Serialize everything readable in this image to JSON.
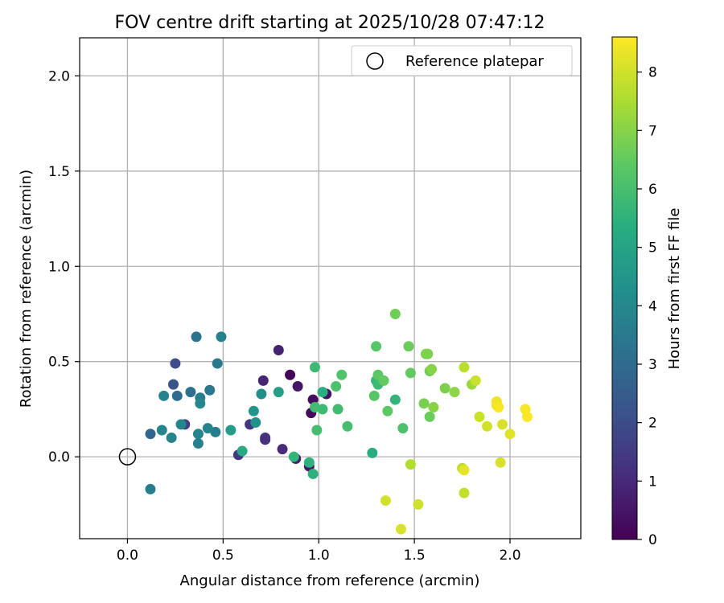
{
  "chart_data": {
    "type": "scatter",
    "title": "FOV centre drift starting at 2025/10/28 07:47:12",
    "xlabel": "Angular distance from reference (arcmin)",
    "ylabel": "Rotation from reference (arcmin)",
    "xlim": [
      -0.25,
      2.37
    ],
    "ylim": [
      -0.43,
      2.2
    ],
    "xticks": [
      0.0,
      0.5,
      1.0,
      1.5,
      2.0
    ],
    "xtick_labels": [
      "0.0",
      "0.5",
      "1.0",
      "1.5",
      "2.0"
    ],
    "yticks": [
      0.0,
      0.5,
      1.0,
      1.5,
      2.0
    ],
    "ytick_labels": [
      "0.0",
      "0.5",
      "1.0",
      "1.5",
      "2.0"
    ],
    "grid": true,
    "legend": {
      "position": "top-right",
      "entries": [
        "Reference platepar"
      ]
    },
    "reference_point": {
      "x": 0.0,
      "y": 0.0,
      "label": "Reference platepar"
    },
    "colorbar": {
      "label": "Hours from first FF file",
      "range": [
        0,
        8.6
      ],
      "ticks": [
        0,
        1,
        2,
        3,
        4,
        5,
        6,
        7,
        8
      ],
      "tick_labels": [
        "0",
        "1",
        "2",
        "3",
        "4",
        "5",
        "6",
        "7",
        "8"
      ],
      "colormap": "viridis"
    },
    "points": [
      {
        "x": 0.85,
        "y": 0.43,
        "c": 0.1
      },
      {
        "x": 0.96,
        "y": 0.23,
        "c": 0.2
      },
      {
        "x": 0.97,
        "y": 0.3,
        "c": 0.3
      },
      {
        "x": 1.04,
        "y": 0.33,
        "c": 0.4
      },
      {
        "x": 0.89,
        "y": 0.37,
        "c": 0.5
      },
      {
        "x": 0.95,
        "y": -0.05,
        "c": 0.6
      },
      {
        "x": 0.88,
        "y": -0.01,
        "c": 0.7
      },
      {
        "x": 0.79,
        "y": 0.56,
        "c": 0.8
      },
      {
        "x": 0.71,
        "y": 0.4,
        "c": 0.9
      },
      {
        "x": 0.81,
        "y": 0.04,
        "c": 1.0
      },
      {
        "x": 0.72,
        "y": 0.09,
        "c": 1.1
      },
      {
        "x": 0.72,
        "y": 0.1,
        "c": 1.2
      },
      {
        "x": 0.64,
        "y": 0.17,
        "c": 1.3
      },
      {
        "x": 0.58,
        "y": 0.01,
        "c": 1.4
      },
      {
        "x": 0.3,
        "y": 0.17,
        "c": 1.6
      },
      {
        "x": 0.25,
        "y": 0.49,
        "c": 2.0
      },
      {
        "x": 0.24,
        "y": 0.38,
        "c": 2.2
      },
      {
        "x": 0.12,
        "y": 0.12,
        "c": 2.8
      },
      {
        "x": 0.26,
        "y": 0.32,
        "c": 3.0
      },
      {
        "x": 0.33,
        "y": 0.34,
        "c": 3.1
      },
      {
        "x": 0.36,
        "y": 0.63,
        "c": 3.3
      },
      {
        "x": 0.43,
        "y": 0.35,
        "c": 3.4
      },
      {
        "x": 0.47,
        "y": 0.49,
        "c": 3.5
      },
      {
        "x": 0.38,
        "y": 0.31,
        "c": 3.5
      },
      {
        "x": 0.46,
        "y": 0.13,
        "c": 3.6
      },
      {
        "x": 0.12,
        "y": -0.17,
        "c": 3.6
      },
      {
        "x": 0.49,
        "y": 0.63,
        "c": 3.7
      },
      {
        "x": 0.37,
        "y": 0.07,
        "c": 3.7
      },
      {
        "x": 0.42,
        "y": 0.15,
        "c": 3.8
      },
      {
        "x": 0.19,
        "y": 0.32,
        "c": 3.8
      },
      {
        "x": 0.23,
        "y": 0.1,
        "c": 3.8
      },
      {
        "x": 0.18,
        "y": 0.14,
        "c": 3.9
      },
      {
        "x": 0.37,
        "y": 0.12,
        "c": 3.9
      },
      {
        "x": 0.28,
        "y": 0.17,
        "c": 3.9
      },
      {
        "x": 0.38,
        "y": 0.28,
        "c": 4.0
      },
      {
        "x": 0.7,
        "y": 0.33,
        "c": 4.2
      },
      {
        "x": 0.67,
        "y": 0.18,
        "c": 4.3
      },
      {
        "x": 0.66,
        "y": 0.24,
        "c": 4.4
      },
      {
        "x": 0.54,
        "y": 0.14,
        "c": 4.7
      },
      {
        "x": 0.79,
        "y": 0.34,
        "c": 4.8
      },
      {
        "x": 0.6,
        "y": 0.03,
        "c": 5.2
      },
      {
        "x": 1.28,
        "y": 0.02,
        "c": 5.3
      },
      {
        "x": 1.02,
        "y": 0.34,
        "c": 5.4
      },
      {
        "x": 0.97,
        "y": -0.09,
        "c": 5.5
      },
      {
        "x": 0.95,
        "y": -0.03,
        "c": 5.5
      },
      {
        "x": 0.87,
        "y": 0.0,
        "c": 5.6
      },
      {
        "x": 1.4,
        "y": 0.3,
        "c": 5.6
      },
      {
        "x": 1.3,
        "y": 0.4,
        "c": 5.7
      },
      {
        "x": 1.31,
        "y": 0.38,
        "c": 5.8
      },
      {
        "x": 0.98,
        "y": 0.47,
        "c": 5.8
      },
      {
        "x": 1.02,
        "y": 0.25,
        "c": 5.8
      },
      {
        "x": 0.98,
        "y": 0.26,
        "c": 5.9
      },
      {
        "x": 1.1,
        "y": 0.25,
        "c": 5.9
      },
      {
        "x": 0.99,
        "y": 0.14,
        "c": 6.0
      },
      {
        "x": 1.15,
        "y": 0.16,
        "c": 6.0
      },
      {
        "x": 1.09,
        "y": 0.37,
        "c": 6.1
      },
      {
        "x": 1.44,
        "y": 0.15,
        "c": 6.1
      },
      {
        "x": 1.12,
        "y": 0.43,
        "c": 6.2
      },
      {
        "x": 1.29,
        "y": 0.32,
        "c": 6.3
      },
      {
        "x": 1.3,
        "y": 0.58,
        "c": 6.3
      },
      {
        "x": 1.36,
        "y": 0.24,
        "c": 6.4
      },
      {
        "x": 1.31,
        "y": 0.43,
        "c": 6.4
      },
      {
        "x": 1.34,
        "y": 0.4,
        "c": 6.5
      },
      {
        "x": 1.48,
        "y": 0.44,
        "c": 6.5
      },
      {
        "x": 1.58,
        "y": 0.21,
        "c": 6.6
      },
      {
        "x": 1.47,
        "y": 0.58,
        "c": 6.6
      },
      {
        "x": 1.4,
        "y": 0.75,
        "c": 6.7
      },
      {
        "x": 1.58,
        "y": 0.45,
        "c": 6.7
      },
      {
        "x": 1.57,
        "y": 0.54,
        "c": 6.8
      },
      {
        "x": 1.55,
        "y": 0.28,
        "c": 6.8
      },
      {
        "x": 1.56,
        "y": 0.54,
        "c": 6.9
      },
      {
        "x": 1.66,
        "y": 0.36,
        "c": 6.9
      },
      {
        "x": 1.6,
        "y": 0.26,
        "c": 7.0
      },
      {
        "x": 1.59,
        "y": 0.46,
        "c": 7.0
      },
      {
        "x": 1.71,
        "y": 0.34,
        "c": 7.1
      },
      {
        "x": 1.8,
        "y": 0.38,
        "c": 7.3
      },
      {
        "x": 1.48,
        "y": -0.04,
        "c": 7.6
      },
      {
        "x": 1.75,
        "y": -0.06,
        "c": 7.7
      },
      {
        "x": 1.76,
        "y": 0.47,
        "c": 7.7
      },
      {
        "x": 1.76,
        "y": -0.19,
        "c": 7.8
      },
      {
        "x": 1.82,
        "y": 0.4,
        "c": 7.9
      },
      {
        "x": 1.84,
        "y": 0.21,
        "c": 7.9
      },
      {
        "x": 1.88,
        "y": 0.16,
        "c": 8.0
      },
      {
        "x": 1.35,
        "y": -0.23,
        "c": 8.0
      },
      {
        "x": 1.52,
        "y": -0.25,
        "c": 8.0
      },
      {
        "x": 1.43,
        "y": -0.38,
        "c": 8.1
      },
      {
        "x": 1.95,
        "y": -0.03,
        "c": 8.1
      },
      {
        "x": 1.96,
        "y": 0.17,
        "c": 8.1
      },
      {
        "x": 2.0,
        "y": 0.12,
        "c": 8.2
      },
      {
        "x": 1.76,
        "y": -0.07,
        "c": 8.3
      },
      {
        "x": 1.93,
        "y": 0.29,
        "c": 8.4
      },
      {
        "x": 1.93,
        "y": 0.27,
        "c": 8.4
      },
      {
        "x": 1.94,
        "y": 0.26,
        "c": 8.5
      },
      {
        "x": 2.08,
        "y": 0.25,
        "c": 8.5
      },
      {
        "x": 2.09,
        "y": 0.21,
        "c": 8.6
      }
    ]
  }
}
